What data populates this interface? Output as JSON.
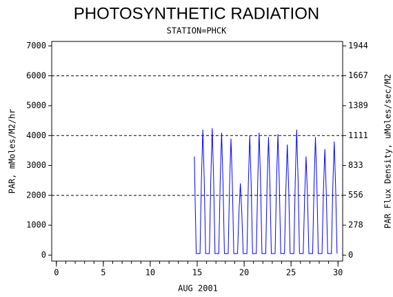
{
  "chart_data": {
    "type": "line",
    "title": "PHOTOSYNTHETIC RADIATION",
    "subtitle": "STATION=PHCK",
    "xlabel": "AUG 2001",
    "ylabel": "PAR, mMoles/M2/hr",
    "y2label": "PAR Flux Density, uMoles/sec/M2",
    "xlim": [
      -0.5,
      30.5
    ],
    "xticks": [
      0,
      5,
      10,
      15,
      20,
      25,
      30
    ],
    "xminorticks": [
      0,
      1,
      2,
      3,
      4,
      5,
      6,
      7,
      8,
      9,
      10,
      11,
      12,
      13,
      14,
      15,
      16,
      17,
      18,
      19,
      20,
      21,
      22,
      23,
      24,
      25,
      26,
      27,
      28,
      29,
      30
    ],
    "ylim": [
      -200,
      7150
    ],
    "yticks": [
      0,
      1000,
      2000,
      3000,
      4000,
      5000,
      6000,
      7000
    ],
    "y2lim": [
      -55.6,
      1986
    ],
    "y2ticks": [
      0,
      278,
      556,
      833,
      1111,
      1389,
      1667,
      1944
    ],
    "ygrid": [
      2000,
      4000,
      6000
    ],
    "series": [
      {
        "color": "#0000ff",
        "x": [
          14.7,
          14.8,
          14.9,
          15.05,
          15.3,
          15.45,
          15.6,
          15.75,
          15.9,
          16.05,
          16.3,
          16.45,
          16.6,
          16.75,
          16.9,
          17.05,
          17.3,
          17.45,
          17.6,
          17.75,
          17.9,
          18.05,
          18.3,
          18.45,
          18.6,
          18.75,
          18.9,
          19.05,
          19.3,
          19.45,
          19.6,
          19.75,
          19.9,
          20.05,
          20.3,
          20.45,
          20.6,
          20.75,
          20.9,
          21.05,
          21.3,
          21.45,
          21.6,
          21.75,
          21.9,
          22.05,
          22.3,
          22.45,
          22.6,
          22.75,
          22.9,
          23.05,
          23.3,
          23.45,
          23.6,
          23.75,
          23.9,
          24.05,
          24.3,
          24.45,
          24.6,
          24.75,
          24.9,
          25.05,
          25.3,
          25.45,
          25.6,
          25.75,
          25.9,
          26.05,
          26.3,
          26.45,
          26.6,
          26.75,
          26.9,
          27.05,
          27.3,
          27.45,
          27.6,
          27.75,
          27.9,
          28.05,
          28.3,
          28.45,
          28.6,
          28.75,
          28.9,
          29.05,
          29.3,
          29.45,
          29.6,
          29.75,
          29.9
        ],
        "values": [
          3300,
          1500,
          50,
          50,
          50,
          2520,
          4200,
          2520,
          50,
          50,
          50,
          2550,
          4250,
          2550,
          50,
          50,
          50,
          2460,
          4100,
          2460,
          50,
          50,
          50,
          2340,
          3900,
          2340,
          50,
          50,
          50,
          1440,
          2400,
          1440,
          50,
          50,
          50,
          2400,
          4000,
          2400,
          50,
          50,
          50,
          2460,
          4100,
          2460,
          50,
          50,
          50,
          2370,
          3950,
          2370,
          50,
          50,
          50,
          2430,
          4050,
          2430,
          50,
          50,
          50,
          2220,
          3700,
          2220,
          50,
          50,
          50,
          2520,
          4200,
          2520,
          50,
          50,
          50,
          1980,
          3300,
          1980,
          50,
          50,
          50,
          2370,
          3950,
          2370,
          50,
          50,
          50,
          2130,
          3550,
          2130,
          50,
          50,
          50,
          2280,
          3800,
          2280,
          50
        ]
      }
    ]
  }
}
